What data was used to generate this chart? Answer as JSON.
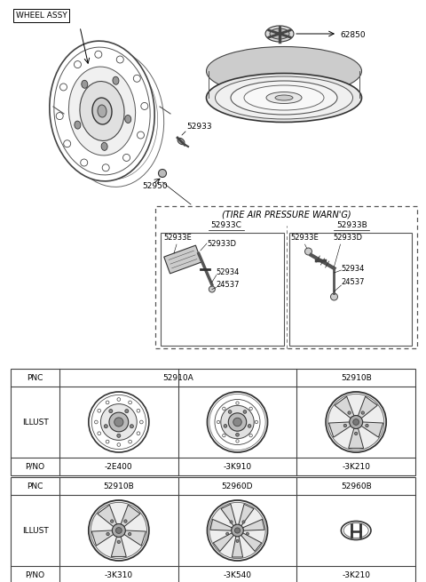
{
  "bg_color": "#ffffff",
  "part_labels": {
    "wheel_assy": "WHEEL ASSY",
    "p52933": "52933",
    "p52950": "52950",
    "p62850": "62850",
    "tire_warn": "(TIRE AIR PRESSURE WARN'G)",
    "p52933C": "52933C",
    "p52933B": "52933B",
    "p52933E_1": "52933E",
    "p52933D_1": "52933D",
    "p52934_1": "52934",
    "p24537_1": "24537",
    "p52933E_2": "52933E",
    "p52933D_2": "52933D",
    "p52934_2": "52934",
    "p24537_2": "24537"
  },
  "table1": {
    "pnc1": "52910A",
    "pnc2": "52910B",
    "pno": [
      "-2E400",
      "-3K910",
      "-3K210"
    ]
  },
  "table2": {
    "pnc": [
      "52910B",
      "52960D",
      "52960B"
    ],
    "pno": [
      "-3K310",
      "-3K540",
      "-3K210"
    ]
  }
}
